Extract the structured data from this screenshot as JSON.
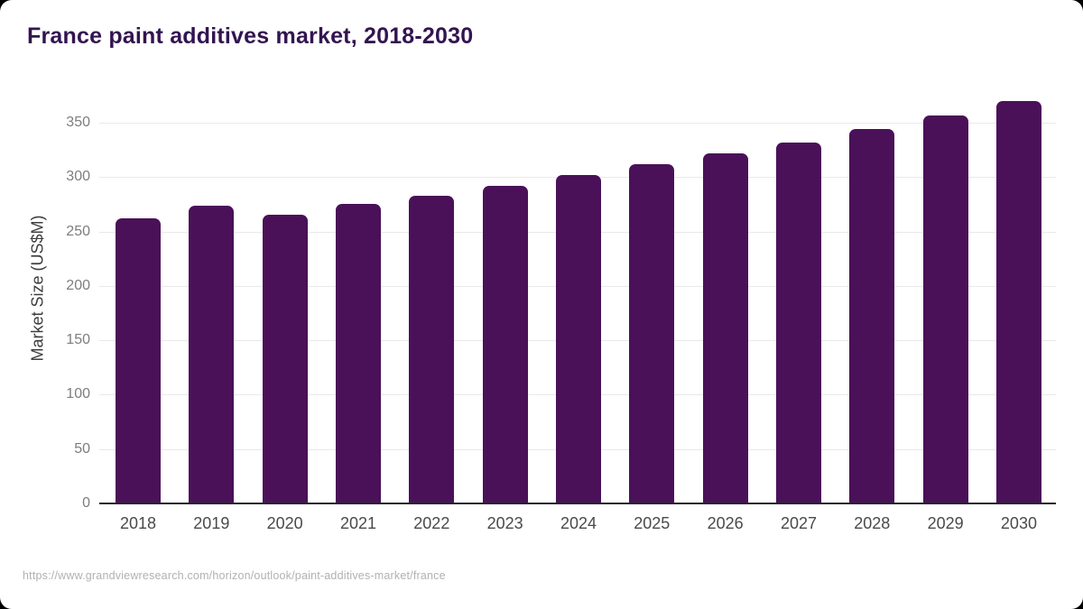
{
  "header": {
    "title": "France paint additives market, 2018-2030"
  },
  "footer": {
    "source_url": "https://www.grandviewresearch.com/horizon/outlook/paint-additives-market/france"
  },
  "chart_data": {
    "type": "bar",
    "title": "France paint additives market, 2018-2030",
    "categories": [
      "2018",
      "2019",
      "2020",
      "2021",
      "2022",
      "2023",
      "2024",
      "2025",
      "2026",
      "2027",
      "2028",
      "2029",
      "2030"
    ],
    "values": [
      262,
      274,
      265,
      275,
      283,
      292,
      302,
      312,
      322,
      332,
      344,
      357,
      370
    ],
    "xlabel": "",
    "ylabel": "Market Size (US$M)",
    "yticks": [
      0,
      50,
      100,
      150,
      200,
      250,
      300,
      350
    ],
    "ylim": [
      0,
      380
    ],
    "grid": true,
    "legend": "none",
    "colors": {
      "bar": "#4a1158",
      "title": "#331450",
      "y_axis_title": "#3d3d3d",
      "y_tick_label": "#7d7d7d",
      "x_tick_label": "#4a4a4a",
      "gridline": "#e9e9e9",
      "baseline": "#26262a",
      "source": "#b1b1b1",
      "card_background": "#ffffff",
      "page_background": "#000000"
    }
  }
}
